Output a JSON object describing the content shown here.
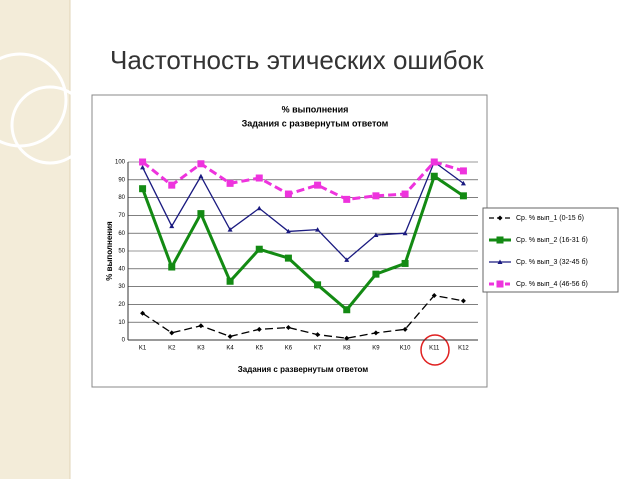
{
  "slide_title": "Частотность этических ошибок",
  "chart_data": {
    "type": "line",
    "title": "% выполнения",
    "subtitle": "Задания с развернутым ответом",
    "x_label": "Задания с развернутым ответом",
    "y_label": "% выполнения",
    "categories": [
      "K1",
      "K2",
      "K3",
      "K4",
      "K5",
      "K6",
      "K7",
      "K8",
      "K9",
      "K10",
      "K11",
      "K12"
    ],
    "ylim": [
      0,
      100
    ],
    "yticks": [
      0,
      10,
      20,
      30,
      40,
      50,
      60,
      70,
      80,
      90,
      100
    ],
    "grid": true,
    "legend": "right",
    "series": [
      {
        "name": "Ср. % вып_1 (0-15 б)",
        "color": "#000000",
        "dashed": true,
        "marker": "diamond",
        "width": 1.3,
        "values": [
          15,
          4,
          8,
          2,
          6,
          7,
          3,
          1,
          4,
          6,
          25,
          22
        ]
      },
      {
        "name": "Ср. % вып_2 (16-31 б)",
        "color": "#138a13",
        "dashed": false,
        "marker": "square",
        "width": 3,
        "values": [
          85,
          41,
          71,
          33,
          51,
          46,
          31,
          17,
          37,
          43,
          92,
          81
        ]
      },
      {
        "name": "Ср. % вып_3 (32-45 б)",
        "color": "#1a1a80",
        "dashed": false,
        "marker": "triangle",
        "width": 1.3,
        "values": [
          97,
          64,
          92,
          62,
          74,
          61,
          62,
          45,
          59,
          60,
          100,
          88
        ]
      },
      {
        "name": "Ср. % вып_4 (46-56 б)",
        "color": "#ee33dd",
        "dashed": true,
        "marker": "square",
        "width": 3,
        "values": [
          100,
          87,
          99,
          88,
          91,
          82,
          87,
          79,
          81,
          82,
          100,
          95
        ]
      }
    ]
  }
}
